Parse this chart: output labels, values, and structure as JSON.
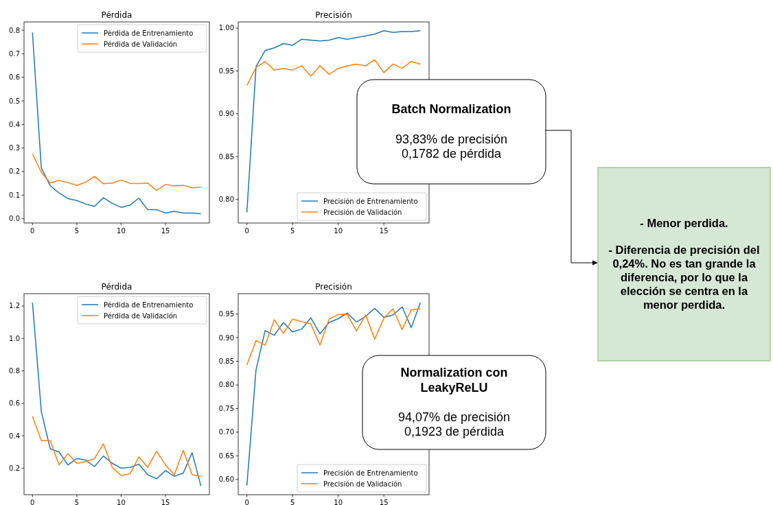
{
  "chart_data": [
    {
      "type": "line",
      "title": "Pérdida",
      "x": [
        0,
        1,
        2,
        3,
        4,
        5,
        6,
        7,
        8,
        9,
        10,
        11,
        12,
        13,
        14,
        15,
        16,
        17,
        18,
        19
      ],
      "xlim": [
        -0.95,
        19.95
      ],
      "xticks": [
        0,
        5,
        10,
        15
      ],
      "ylim": [
        -0.0185,
        0.835
      ],
      "yticks": [
        {
          "value": 0,
          "label": "0.0"
        },
        0.1,
        0.2,
        0.3,
        0.4,
        0.5,
        0.6,
        0.7,
        0.8
      ],
      "legend": "top right",
      "grid": false,
      "series": [
        {
          "name": "Pérdida de Entrenamiento",
          "color": "#1f77b4",
          "values": [
            0.79,
            0.215,
            0.14,
            0.109,
            0.085,
            0.077,
            0.062,
            0.052,
            0.089,
            0.065,
            0.048,
            0.057,
            0.087,
            0.038,
            0.038,
            0.024,
            0.031,
            0.024,
            0.024,
            0.021
          ]
        },
        {
          "name": "Pérdida de Validación",
          "color": "#ff7f0e",
          "values": [
            0.275,
            0.196,
            0.152,
            0.162,
            0.153,
            0.141,
            0.155,
            0.179,
            0.148,
            0.151,
            0.164,
            0.15,
            0.149,
            0.151,
            0.12,
            0.145,
            0.139,
            0.142,
            0.131,
            0.134
          ]
        }
      ]
    },
    {
      "type": "line",
      "title": "Precisión",
      "x": [
        0,
        1,
        2,
        3,
        4,
        5,
        6,
        7,
        8,
        9,
        10,
        11,
        12,
        13,
        14,
        15,
        16,
        17,
        18,
        19
      ],
      "xlim": [
        -0.95,
        19.95
      ],
      "xticks": [
        0,
        5,
        10,
        15
      ],
      "ylim": [
        0.7725,
        1.0072
      ],
      "yticks": [
        {
          "value": 0.8,
          "label": "0.80"
        },
        0.85,
        {
          "value": 0.9,
          "label": "0.90"
        },
        0.95,
        {
          "value": 1,
          "label": "1.00"
        }
      ],
      "legend": "bottom right",
      "grid": false,
      "series": [
        {
          "name": "Precisión de Entrenamiento",
          "color": "#1f77b4",
          "values": [
            0.785,
            0.955,
            0.974,
            0.977,
            0.982,
            0.98,
            0.987,
            0.986,
            0.985,
            0.986,
            0.989,
            0.987,
            0.989,
            0.991,
            0.993,
            0.997,
            0.995,
            0.996,
            0.996,
            0.997
          ]
        },
        {
          "name": "Precisión de Validación",
          "color": "#ff7f0e",
          "values": [
            0.933,
            0.954,
            0.961,
            0.951,
            0.953,
            0.951,
            0.956,
            0.944,
            0.956,
            0.946,
            0.953,
            0.956,
            0.958,
            0.956,
            0.963,
            0.948,
            0.958,
            0.953,
            0.961,
            0.958
          ]
        }
      ]
    },
    {
      "type": "line",
      "title": "Pérdida",
      "x": [
        0,
        1,
        2,
        3,
        4,
        5,
        6,
        7,
        8,
        9,
        10,
        11,
        12,
        13,
        14,
        15,
        16,
        17,
        18,
        19
      ],
      "xlim": [
        -0.95,
        19.95
      ],
      "xticks": [
        0,
        5,
        10,
        15
      ],
      "ylim": [
        0.0366,
        1.276
      ],
      "yticks": [
        0.2,
        0.4,
        0.6,
        0.8,
        {
          "value": 1,
          "label": "1.0"
        },
        1.2
      ],
      "legend": "top right",
      "grid": false,
      "series": [
        {
          "name": "Pérdida de Entrenamiento",
          "color": "#1f77b4",
          "values": [
            1.22,
            0.55,
            0.32,
            0.3,
            0.22,
            0.26,
            0.25,
            0.21,
            0.275,
            0.23,
            0.2,
            0.205,
            0.225,
            0.16,
            0.135,
            0.185,
            0.15,
            0.17,
            0.295,
            0.09
          ]
        },
        {
          "name": "Pérdida de Validación",
          "color": "#ff7f0e",
          "values": [
            0.52,
            0.37,
            0.37,
            0.22,
            0.29,
            0.23,
            0.24,
            0.26,
            0.35,
            0.205,
            0.155,
            0.165,
            0.27,
            0.205,
            0.305,
            0.22,
            0.16,
            0.31,
            0.16,
            0.15
          ]
        }
      ]
    },
    {
      "type": "line",
      "title": "Precisión",
      "x": [
        0,
        1,
        2,
        3,
        4,
        5,
        6,
        7,
        8,
        9,
        10,
        11,
        12,
        13,
        14,
        15,
        16,
        17,
        18,
        19
      ],
      "xlim": [
        -0.95,
        19.95
      ],
      "xticks": [
        0,
        5,
        10,
        15
      ],
      "ylim": [
        0.5676,
        0.993
      ],
      "yticks": [
        {
          "value": 0.6,
          "label": "0.60"
        },
        0.65,
        {
          "value": 0.7,
          "label": "0.70"
        },
        0.75,
        {
          "value": 0.8,
          "label": "0.80"
        },
        0.85,
        {
          "value": 0.9,
          "label": "0.90"
        },
        0.95
      ],
      "legend": "bottom right",
      "grid": false,
      "series": [
        {
          "name": "Precisión de Entrenamiento",
          "color": "#1f77b4",
          "values": [
            0.587,
            0.832,
            0.915,
            0.905,
            0.932,
            0.912,
            0.918,
            0.942,
            0.908,
            0.932,
            0.94,
            0.952,
            0.933,
            0.945,
            0.962,
            0.943,
            0.948,
            0.965,
            0.921,
            0.974
          ]
        },
        {
          "name": "Precisión de Validación",
          "color": "#ff7f0e",
          "values": [
            0.842,
            0.894,
            0.884,
            0.938,
            0.909,
            0.939,
            0.934,
            0.929,
            0.884,
            0.939,
            0.949,
            0.949,
            0.914,
            0.948,
            0.897,
            0.941,
            0.961,
            0.917,
            0.959,
            0.961
          ]
        }
      ]
    },
    {
      "type": "other",
      "title": "Batch Normalization",
      "annotations": [
        "93,83% de precisión",
        "0,1782 de pérdida"
      ]
    },
    {
      "type": "other",
      "title": "Normalization con LeakyReLU",
      "annotations": [
        "94,07% de precisión",
        "0,1923 de pérdida"
      ]
    },
    {
      "type": "other",
      "annotations": [
        "- Menor perdida.",
        "- Diferencia de precisión del 0,24%. No es tan grande la diferencia, por lo que la elección se centra en la menor perdida."
      ]
    }
  ]
}
